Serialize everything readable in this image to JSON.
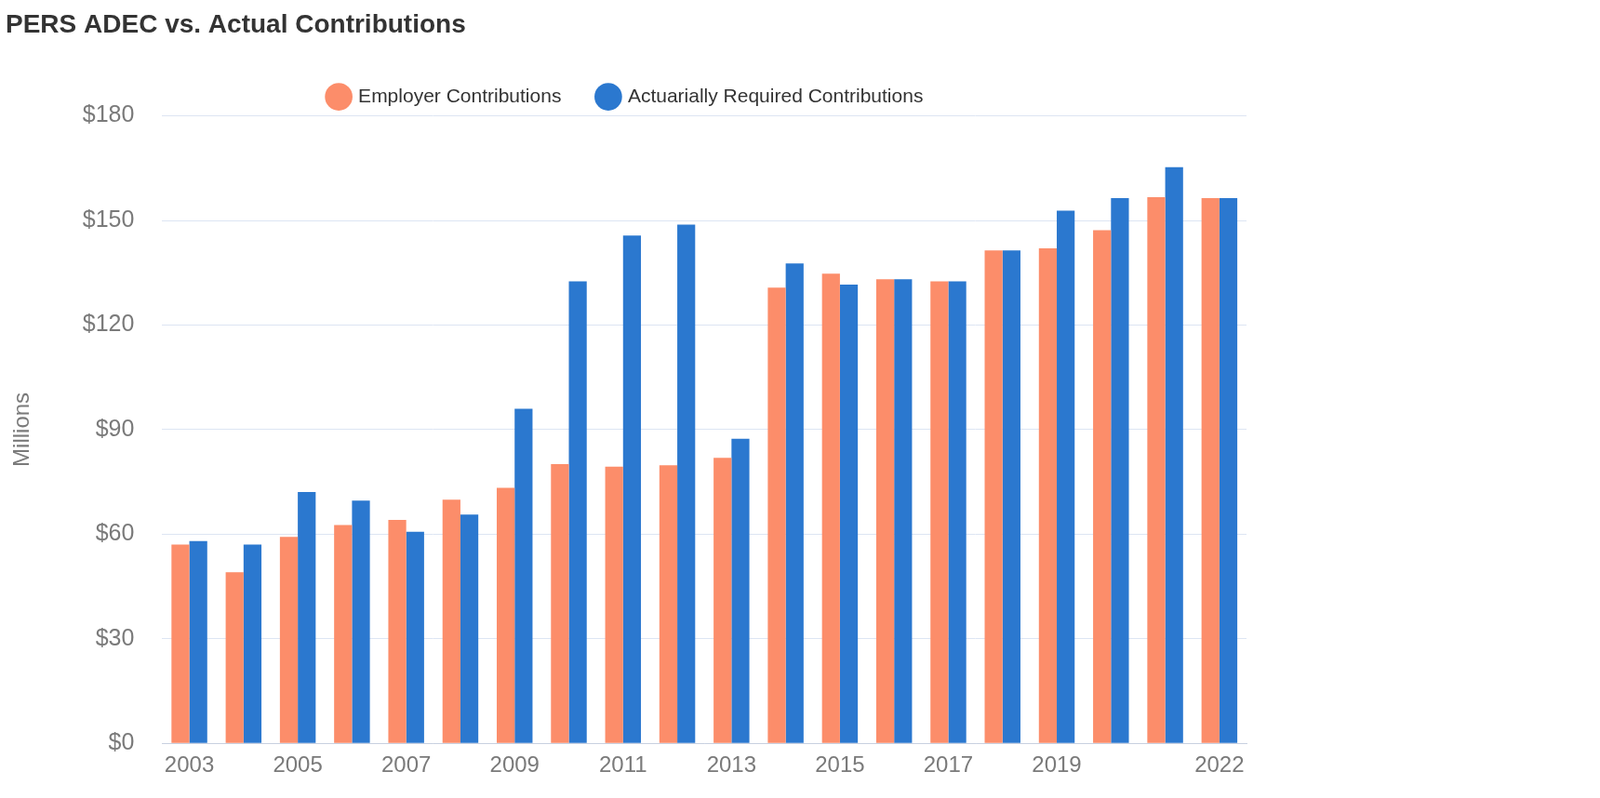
{
  "chart_data": {
    "type": "bar",
    "title": "PERS ADEC vs. Actual Contributions",
    "y_label": "Millions",
    "categories": [
      "2003",
      null,
      "2005",
      null,
      "2007",
      null,
      "2009",
      null,
      "2011",
      null,
      "2013",
      null,
      "2015",
      null,
      "2017",
      null,
      "2019",
      null,
      null,
      "2022"
    ],
    "series": [
      {
        "name": "Employer Contributions",
        "color": "#fc8d6a",
        "values": [
          57.0,
          49.1,
          59.2,
          62.6,
          64.1,
          69.9,
          73.3,
          80.1,
          79.4,
          79.8,
          81.9,
          130.7,
          134.7,
          133.1,
          132.5,
          141.4,
          142.0,
          147.2,
          156.7,
          156.4
        ]
      },
      {
        "name": "Actuarially Required Contributions",
        "color": "#2b78cf",
        "values": [
          58.0,
          57.0,
          72.1,
          69.6,
          60.7,
          65.6,
          96.0,
          132.5,
          145.7,
          148.8,
          87.4,
          137.7,
          131.6,
          133.1,
          132.5,
          141.4,
          152.8,
          156.4,
          165.3,
          156.4
        ]
      }
    ],
    "ylim": [
      0,
      180
    ],
    "yticks": [
      {
        "value": 0,
        "label": "$0"
      },
      {
        "value": 30,
        "label": "$30"
      },
      {
        "value": 60,
        "label": "$60"
      },
      {
        "value": 90,
        "label": "$90"
      },
      {
        "value": 120,
        "label": "$120"
      },
      {
        "value": 150,
        "label": "$150"
      },
      {
        "value": 180,
        "label": "$180"
      }
    ],
    "grid": true,
    "legend": "top"
  }
}
